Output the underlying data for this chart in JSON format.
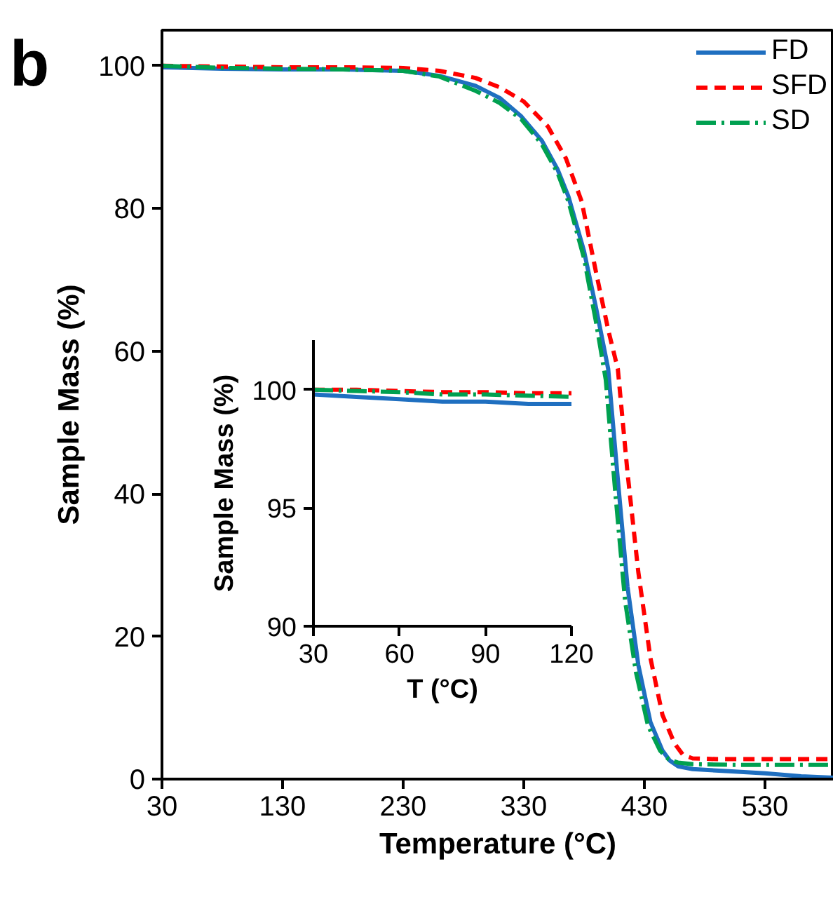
{
  "chart_data": [
    {
      "type": "line",
      "xlabel": "Temperature (°C)",
      "ylabel": "Sample Mass (%)",
      "annotations": [
        "b"
      ],
      "xlim": [
        30,
        587
      ],
      "ylim": [
        0,
        105
      ],
      "xticks": [
        30,
        130,
        230,
        330,
        430,
        530
      ],
      "yticks": [
        0,
        20,
        40,
        60,
        80,
        100
      ],
      "grid": false,
      "legend": "top right",
      "series": [
        {
          "name": "FD",
          "color": "#1f6fc0",
          "line_style": "solid",
          "x": [
            30,
            80,
            130,
            180,
            230,
            260,
            290,
            310,
            328,
            345,
            358,
            367,
            380,
            390,
            400,
            408,
            416,
            425,
            435,
            445,
            451,
            458,
            470,
            500,
            530,
            560,
            587
          ],
          "values": [
            99.8,
            99.6,
            99.5,
            99.5,
            99.3,
            98.6,
            97.2,
            95.5,
            92.9,
            89.5,
            85.5,
            81.7,
            74,
            66,
            57.5,
            42,
            27,
            16,
            8,
            4,
            2.6,
            1.8,
            1.4,
            1.1,
            0.8,
            0.4,
            0.2
          ]
        },
        {
          "name": "SFD",
          "color": "#ff0000",
          "line_style": "dashed",
          "x": [
            30,
            80,
            130,
            180,
            230,
            260,
            290,
            310,
            330,
            350,
            365,
            378,
            390,
            400,
            408,
            416,
            425,
            435,
            445,
            455,
            462,
            470,
            490,
            530,
            587
          ],
          "values": [
            100,
            99.9,
            99.8,
            99.8,
            99.7,
            99.3,
            98.3,
            97,
            95,
            91.5,
            87,
            81,
            71,
            63,
            57.5,
            43,
            29,
            17,
            9,
            5,
            3.4,
            2.9,
            2.8,
            2.8,
            2.8
          ]
        },
        {
          "name": "SD",
          "color": "#00a050",
          "line_style": "dashdot",
          "x": [
            30,
            80,
            130,
            180,
            230,
            260,
            290,
            310,
            328,
            345,
            358,
            367,
            380,
            390,
            398,
            406,
            414,
            423,
            433,
            443,
            450,
            458,
            470,
            500,
            530,
            587
          ],
          "values": [
            100,
            99.7,
            99.6,
            99.5,
            99.3,
            98.5,
            96.5,
            94.8,
            92.5,
            89,
            85,
            81,
            73,
            64,
            56,
            40,
            25,
            15,
            7.5,
            4,
            2.8,
            2.3,
            2.1,
            2,
            2,
            2
          ]
        }
      ]
    },
    {
      "type": "line",
      "xlabel": "T (°C)",
      "ylabel": "Sample Mass (%)",
      "xlim": [
        30,
        120
      ],
      "ylim": [
        90,
        102.1
      ],
      "xticks": [
        30,
        60,
        90,
        120
      ],
      "yticks": [
        90,
        95,
        100
      ],
      "grid": false,
      "legend": false,
      "series": [
        {
          "color": "#1f6fc0",
          "line_style": "solid",
          "x": [
            30,
            45,
            60,
            75,
            90,
            105,
            120
          ],
          "values": [
            99.8,
            99.7,
            99.6,
            99.5,
            99.5,
            99.4,
            99.4
          ]
        },
        {
          "color": "#ff0000",
          "line_style": "dashed",
          "x": [
            30,
            45,
            60,
            75,
            90,
            105,
            120
          ],
          "values": [
            100,
            100,
            99.95,
            99.9,
            99.9,
            99.85,
            99.85
          ]
        },
        {
          "color": "#00a050",
          "line_style": "dashdot",
          "x": [
            30,
            45,
            60,
            75,
            90,
            105,
            120
          ],
          "values": [
            100,
            99.95,
            99.9,
            99.8,
            99.8,
            99.75,
            99.7
          ]
        }
      ]
    }
  ]
}
